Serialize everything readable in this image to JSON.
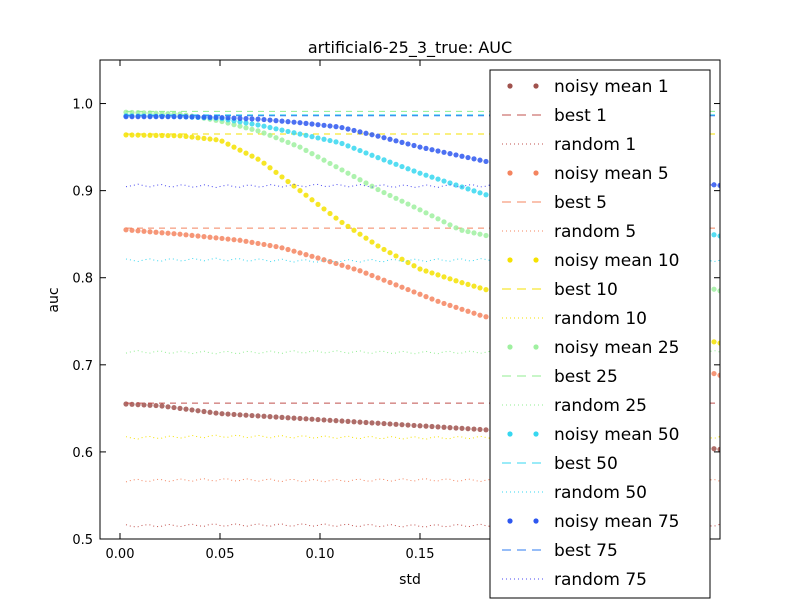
{
  "chart_data": {
    "type": "line",
    "title": "artificial6-25_3_true: AUC",
    "xlabel": "std",
    "ylabel": "auc",
    "xlim": [
      -0.01,
      0.3
    ],
    "ylim": [
      0.5,
      1.05
    ],
    "x_ticks": [
      0.0,
      0.05,
      0.1,
      0.15
    ],
    "x_tick_labels": [
      "0.00",
      "0.05",
      "0.10",
      "0.15"
    ],
    "y_ticks": [
      0.5,
      0.6,
      0.7,
      0.8,
      0.9,
      1.0
    ],
    "y_tick_labels": [
      "0.5",
      "0.6",
      "0.7",
      "0.8",
      "0.9",
      "1.0"
    ],
    "grid": false,
    "legend_position": "right",
    "series": [
      {
        "name": "noisy mean 1",
        "style": "dots",
        "color": "#a0524d",
        "points": [
          [
            0.003,
            0.655
          ],
          [
            0.02,
            0.653
          ],
          [
            0.05,
            0.644
          ],
          [
            0.1,
            0.637
          ],
          [
            0.15,
            0.63
          ],
          [
            0.2,
            0.623
          ],
          [
            0.25,
            0.614
          ],
          [
            0.3,
            0.603
          ]
        ]
      },
      {
        "name": "best 1",
        "style": "dashed",
        "color": "#c0504d",
        "points": [
          [
            0.003,
            0.656
          ],
          [
            0.3,
            0.656
          ]
        ]
      },
      {
        "name": "random 1",
        "style": "dotted",
        "color": "#c0504d",
        "points": [
          [
            0.003,
            0.515
          ],
          [
            0.05,
            0.516
          ],
          [
            0.1,
            0.516
          ],
          [
            0.15,
            0.515
          ],
          [
            0.2,
            0.516
          ],
          [
            0.25,
            0.515
          ],
          [
            0.3,
            0.516
          ]
        ]
      },
      {
        "name": "noisy mean 5",
        "style": "dots",
        "color": "#f4845f",
        "points": [
          [
            0.003,
            0.855
          ],
          [
            0.03,
            0.85
          ],
          [
            0.06,
            0.843
          ],
          [
            0.08,
            0.835
          ],
          [
            0.1,
            0.822
          ],
          [
            0.12,
            0.808
          ],
          [
            0.14,
            0.79
          ],
          [
            0.16,
            0.772
          ],
          [
            0.18,
            0.757
          ],
          [
            0.2,
            0.745
          ],
          [
            0.25,
            0.72
          ],
          [
            0.3,
            0.688
          ]
        ]
      },
      {
        "name": "best 5",
        "style": "dashed",
        "color": "#f4845f",
        "points": [
          [
            0.003,
            0.857
          ],
          [
            0.3,
            0.857
          ]
        ]
      },
      {
        "name": "random 5",
        "style": "dotted",
        "color": "#f4845f",
        "points": [
          [
            0.003,
            0.567
          ],
          [
            0.05,
            0.568
          ],
          [
            0.1,
            0.567
          ],
          [
            0.15,
            0.568
          ],
          [
            0.2,
            0.567
          ],
          [
            0.25,
            0.567
          ],
          [
            0.3,
            0.567
          ]
        ]
      },
      {
        "name": "noisy mean 10",
        "style": "dots",
        "color": "#f5e200",
        "points": [
          [
            0.003,
            0.964
          ],
          [
            0.03,
            0.963
          ],
          [
            0.05,
            0.958
          ],
          [
            0.07,
            0.935
          ],
          [
            0.09,
            0.9
          ],
          [
            0.11,
            0.865
          ],
          [
            0.13,
            0.835
          ],
          [
            0.15,
            0.81
          ],
          [
            0.17,
            0.795
          ],
          [
            0.2,
            0.775
          ],
          [
            0.25,
            0.748
          ],
          [
            0.3,
            0.725
          ]
        ]
      },
      {
        "name": "best 10",
        "style": "dashed",
        "color": "#f5e200",
        "points": [
          [
            0.003,
            0.965
          ],
          [
            0.3,
            0.965
          ]
        ]
      },
      {
        "name": "random 10",
        "style": "dotted",
        "color": "#f5e200",
        "points": [
          [
            0.003,
            0.616
          ],
          [
            0.05,
            0.618
          ],
          [
            0.1,
            0.617
          ],
          [
            0.15,
            0.616
          ],
          [
            0.2,
            0.617
          ],
          [
            0.25,
            0.616
          ],
          [
            0.3,
            0.617
          ]
        ]
      },
      {
        "name": "noisy mean 25",
        "style": "dots",
        "color": "#9ff0a0",
        "points": [
          [
            0.003,
            0.99
          ],
          [
            0.03,
            0.988
          ],
          [
            0.05,
            0.98
          ],
          [
            0.07,
            0.968
          ],
          [
            0.09,
            0.95
          ],
          [
            0.11,
            0.925
          ],
          [
            0.13,
            0.9
          ],
          [
            0.15,
            0.878
          ],
          [
            0.17,
            0.855
          ],
          [
            0.19,
            0.845
          ],
          [
            0.25,
            0.815
          ],
          [
            0.3,
            0.785
          ]
        ]
      },
      {
        "name": "best 25",
        "style": "dashed",
        "color": "#90ee90",
        "points": [
          [
            0.003,
            0.991
          ],
          [
            0.3,
            0.991
          ]
        ]
      },
      {
        "name": "random 25",
        "style": "dotted",
        "color": "#90ee90",
        "points": [
          [
            0.003,
            0.715
          ],
          [
            0.05,
            0.714
          ],
          [
            0.1,
            0.715
          ],
          [
            0.15,
            0.714
          ],
          [
            0.2,
            0.715
          ],
          [
            0.25,
            0.714
          ],
          [
            0.3,
            0.715
          ]
        ]
      },
      {
        "name": "noisy mean 50",
        "style": "dots",
        "color": "#36d7f0",
        "points": [
          [
            0.003,
            0.986
          ],
          [
            0.03,
            0.985
          ],
          [
            0.05,
            0.983
          ],
          [
            0.07,
            0.975
          ],
          [
            0.09,
            0.965
          ],
          [
            0.11,
            0.955
          ],
          [
            0.13,
            0.937
          ],
          [
            0.15,
            0.92
          ],
          [
            0.17,
            0.905
          ],
          [
            0.19,
            0.89
          ],
          [
            0.25,
            0.87
          ],
          [
            0.3,
            0.848
          ]
        ]
      },
      {
        "name": "best 50",
        "style": "dashed",
        "color": "#36d7f0",
        "points": [
          [
            0.003,
            0.987
          ],
          [
            0.3,
            0.987
          ]
        ]
      },
      {
        "name": "random 50",
        "style": "dotted",
        "color": "#36d7f0",
        "points": [
          [
            0.003,
            0.82
          ],
          [
            0.05,
            0.821
          ],
          [
            0.1,
            0.819
          ],
          [
            0.15,
            0.82
          ],
          [
            0.2,
            0.821
          ],
          [
            0.25,
            0.82
          ],
          [
            0.3,
            0.82
          ]
        ]
      },
      {
        "name": "noisy mean 75",
        "style": "dots",
        "color": "#2d57f0",
        "points": [
          [
            0.003,
            0.985
          ],
          [
            0.03,
            0.985
          ],
          [
            0.05,
            0.984
          ],
          [
            0.07,
            0.982
          ],
          [
            0.09,
            0.978
          ],
          [
            0.11,
            0.973
          ],
          [
            0.13,
            0.962
          ],
          [
            0.15,
            0.95
          ],
          [
            0.17,
            0.94
          ],
          [
            0.19,
            0.93
          ],
          [
            0.25,
            0.918
          ],
          [
            0.3,
            0.906
          ]
        ]
      },
      {
        "name": "best 75",
        "style": "dashed",
        "color": "#2d7bf0",
        "points": [
          [
            0.003,
            0.986
          ],
          [
            0.3,
            0.986
          ]
        ]
      },
      {
        "name": "random 75",
        "style": "dotted",
        "color": "#4a4af0",
        "points": [
          [
            0.003,
            0.906
          ],
          [
            0.05,
            0.905
          ],
          [
            0.1,
            0.906
          ],
          [
            0.15,
            0.905
          ],
          [
            0.2,
            0.906
          ],
          [
            0.25,
            0.905
          ],
          [
            0.3,
            0.906
          ]
        ]
      }
    ]
  }
}
